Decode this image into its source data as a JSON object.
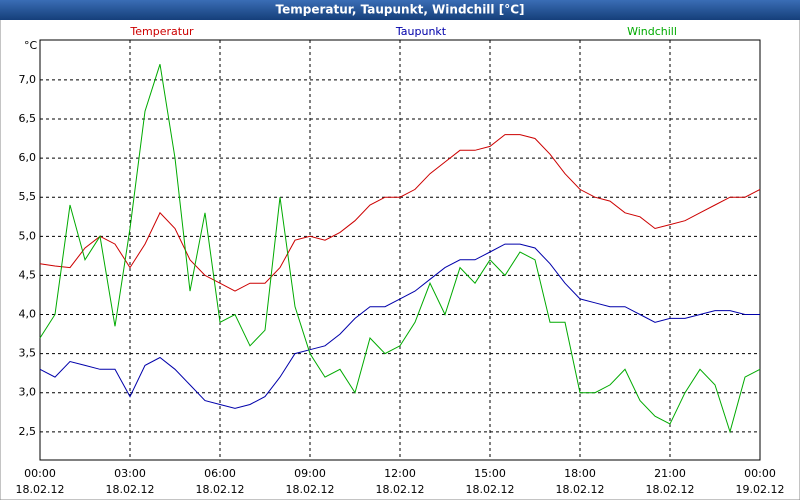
{
  "title": "Temperatur, Taupunkt, Windchill [°C]",
  "chart_data": {
    "type": "line",
    "y_label": "°C",
    "x": [
      0,
      0.5,
      1,
      1.5,
      2,
      2.5,
      3,
      3.5,
      4,
      4.5,
      5,
      5.5,
      6,
      6.5,
      7,
      7.5,
      8,
      8.5,
      9,
      9.5,
      10,
      10.5,
      11,
      11.5,
      12,
      12.5,
      13,
      13.5,
      14,
      14.5,
      15,
      15.5,
      16,
      16.5,
      17,
      17.5,
      18,
      18.5,
      19,
      19.5,
      20,
      20.5,
      21,
      21.5,
      22,
      22.5,
      23,
      23.5,
      24
    ],
    "xlim": [
      0,
      24
    ],
    "xticks": [
      {
        "value": 0,
        "label": "00:00",
        "date": "18.02.12"
      },
      {
        "value": 3,
        "label": "03:00",
        "date": "18.02.12"
      },
      {
        "value": 6,
        "label": "06:00",
        "date": "18.02.12"
      },
      {
        "value": 9,
        "label": "09:00",
        "date": "18.02.12"
      },
      {
        "value": 12,
        "label": "12:00",
        "date": "18.02.12"
      },
      {
        "value": 15,
        "label": "15:00",
        "date": "18.02.12"
      },
      {
        "value": 18,
        "label": "18:00",
        "date": "18.02.12"
      },
      {
        "value": 21,
        "label": "21:00",
        "date": "18.02.12"
      },
      {
        "value": 24,
        "label": "00:00",
        "date": "19.02.12"
      }
    ],
    "ylim": [
      2.14,
      7.51
    ],
    "yticks": [
      {
        "value": 2.5,
        "label": "2,5"
      },
      {
        "value": 3,
        "label": "3,0"
      },
      {
        "value": 3.5,
        "label": "3,5"
      },
      {
        "value": 4,
        "label": "4,0"
      },
      {
        "value": 4.5,
        "label": "4,5"
      },
      {
        "value": 5,
        "label": "5,0"
      },
      {
        "value": 5.5,
        "label": "5,5"
      },
      {
        "value": 6,
        "label": "6,0"
      },
      {
        "value": 6.5,
        "label": "6,5"
      },
      {
        "value": 7,
        "label": "7,0"
      }
    ],
    "grid": true,
    "series": [
      {
        "name": "Temperatur",
        "color": "#cc0000",
        "values": [
          4.65,
          4.62,
          4.6,
          4.85,
          5.0,
          4.9,
          4.6,
          4.9,
          5.3,
          5.1,
          4.7,
          4.5,
          4.4,
          4.3,
          4.4,
          4.4,
          4.6,
          4.95,
          5.0,
          4.95,
          5.05,
          5.2,
          5.4,
          5.5,
          5.5,
          5.6,
          5.8,
          5.95,
          6.1,
          6.1,
          6.15,
          6.3,
          6.3,
          6.25,
          6.05,
          5.8,
          5.6,
          5.5,
          5.45,
          5.3,
          5.25,
          5.1,
          5.15,
          5.2,
          5.3,
          5.4,
          5.5,
          5.5,
          5.6
        ]
      },
      {
        "name": "Taupunkt",
        "color": "#0000aa",
        "values": [
          3.3,
          3.2,
          3.4,
          3.35,
          3.3,
          3.3,
          2.95,
          3.35,
          3.45,
          3.3,
          3.1,
          2.9,
          2.85,
          2.8,
          2.85,
          2.95,
          3.2,
          3.5,
          3.55,
          3.6,
          3.75,
          3.95,
          4.1,
          4.1,
          4.2,
          4.3,
          4.45,
          4.6,
          4.7,
          4.7,
          4.8,
          4.9,
          4.9,
          4.85,
          4.65,
          4.4,
          4.2,
          4.15,
          4.1,
          4.1,
          4.0,
          3.9,
          3.95,
          3.95,
          4.0,
          4.05,
          4.05,
          4.0,
          4.0
        ]
      },
      {
        "name": "Windchill",
        "color": "#00aa00",
        "values": [
          3.7,
          4.0,
          5.4,
          4.7,
          5.0,
          3.85,
          5.1,
          6.6,
          7.2,
          6.0,
          4.3,
          5.3,
          3.9,
          4.0,
          3.6,
          3.8,
          5.5,
          4.1,
          3.5,
          3.2,
          3.3,
          3.0,
          3.7,
          3.5,
          3.6,
          3.9,
          4.4,
          4.0,
          4.6,
          4.4,
          4.7,
          4.5,
          4.8,
          4.7,
          3.9,
          3.9,
          3.0,
          3.0,
          3.1,
          3.3,
          2.9,
          2.7,
          2.6,
          3.0,
          3.3,
          3.1,
          2.5,
          3.2,
          3.3
        ]
      }
    ]
  }
}
